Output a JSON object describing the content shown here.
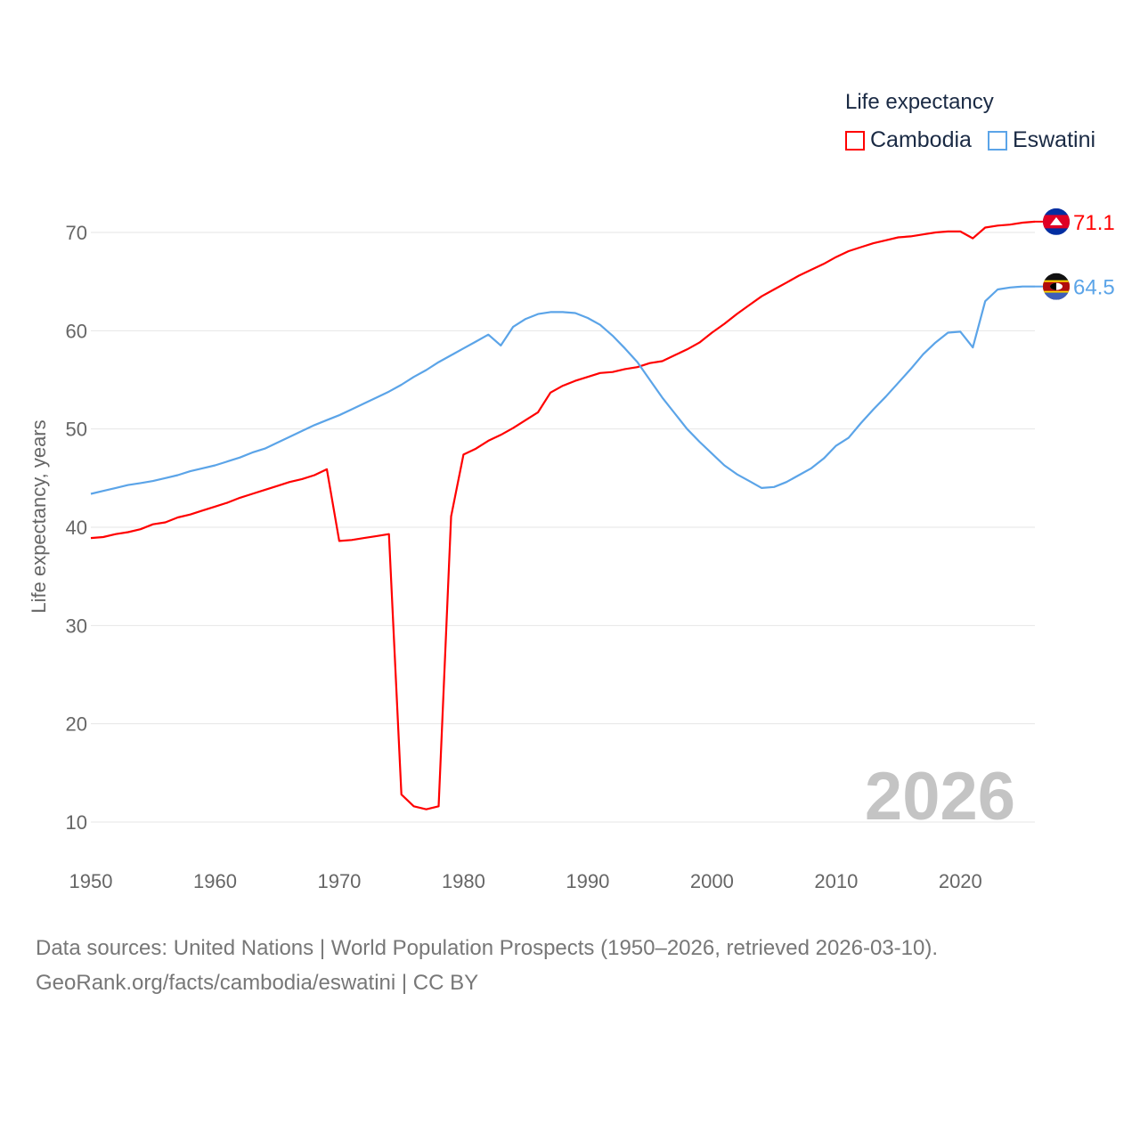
{
  "chart_data": {
    "type": "line",
    "legend_title": "Life expectancy",
    "ylabel": "Life expectancy, years",
    "xlabel": "",
    "xlim": [
      1950,
      2026
    ],
    "ylim": [
      10,
      70
    ],
    "x_ticks": [
      1950,
      1960,
      1970,
      1980,
      1990,
      2000,
      2010,
      2020
    ],
    "y_ticks": [
      10,
      20,
      30,
      40,
      50,
      60,
      70
    ],
    "grid": true,
    "legend_position": "top-right",
    "year_label": "2026",
    "x": [
      1950,
      1951,
      1952,
      1953,
      1954,
      1955,
      1956,
      1957,
      1958,
      1959,
      1960,
      1961,
      1962,
      1963,
      1964,
      1965,
      1966,
      1967,
      1968,
      1969,
      1970,
      1971,
      1972,
      1973,
      1974,
      1975,
      1976,
      1977,
      1978,
      1979,
      1980,
      1981,
      1982,
      1983,
      1984,
      1985,
      1986,
      1987,
      1988,
      1989,
      1990,
      1991,
      1992,
      1993,
      1994,
      1995,
      1996,
      1997,
      1998,
      1999,
      2000,
      2001,
      2002,
      2003,
      2004,
      2005,
      2006,
      2007,
      2008,
      2009,
      2010,
      2011,
      2012,
      2013,
      2014,
      2015,
      2016,
      2017,
      2018,
      2019,
      2020,
      2021,
      2022,
      2023,
      2024,
      2025,
      2026
    ],
    "series": [
      {
        "name": "Cambodia",
        "color": "#ff0000",
        "end_label": "71.1",
        "values": [
          38.9,
          39.0,
          39.3,
          39.5,
          39.8,
          40.3,
          40.5,
          41.0,
          41.3,
          41.7,
          42.1,
          42.5,
          43.0,
          43.4,
          43.8,
          44.2,
          44.6,
          44.9,
          45.3,
          45.9,
          38.6,
          38.7,
          38.9,
          39.1,
          39.3,
          12.8,
          11.6,
          11.3,
          11.6,
          41.1,
          47.4,
          48.0,
          48.8,
          49.4,
          50.1,
          50.9,
          51.7,
          53.7,
          54.4,
          54.9,
          55.3,
          55.7,
          55.8,
          56.1,
          56.3,
          56.7,
          56.9,
          57.5,
          58.1,
          58.8,
          59.8,
          60.7,
          61.7,
          62.6,
          63.5,
          64.2,
          64.9,
          65.6,
          66.2,
          66.8,
          67.5,
          68.1,
          68.5,
          68.9,
          69.2,
          69.5,
          69.6,
          69.8,
          70.0,
          70.1,
          70.1,
          69.4,
          70.5,
          70.7,
          70.8,
          71.0,
          71.1
        ]
      },
      {
        "name": "Eswatini",
        "color": "#5ba4e8",
        "end_label": "64.5",
        "values": [
          43.4,
          43.7,
          44.0,
          44.3,
          44.5,
          44.7,
          45.0,
          45.3,
          45.7,
          46.0,
          46.3,
          46.7,
          47.1,
          47.6,
          48.0,
          48.6,
          49.2,
          49.8,
          50.4,
          50.9,
          51.4,
          52.0,
          52.6,
          53.2,
          53.8,
          54.5,
          55.3,
          56.0,
          56.8,
          57.5,
          58.2,
          58.9,
          59.6,
          58.5,
          60.4,
          61.2,
          61.7,
          61.9,
          61.9,
          61.8,
          61.3,
          60.6,
          59.5,
          58.2,
          56.8,
          55.0,
          53.2,
          51.6,
          50.0,
          48.7,
          47.5,
          46.3,
          45.4,
          44.7,
          44.0,
          44.1,
          44.6,
          45.3,
          46.0,
          47.0,
          48.3,
          49.1,
          50.6,
          52.0,
          53.3,
          54.7,
          56.1,
          57.6,
          58.8,
          59.8,
          59.9,
          58.3,
          63.0,
          64.2,
          64.4,
          64.5,
          64.5
        ]
      }
    ]
  },
  "footer": {
    "line1": "Data sources: United Nations | World Population Prospects (1950–2026, retrieved 2026-03-10).",
    "line2": "GeoRank.org/facts/cambodia/eswatini | CC BY"
  }
}
